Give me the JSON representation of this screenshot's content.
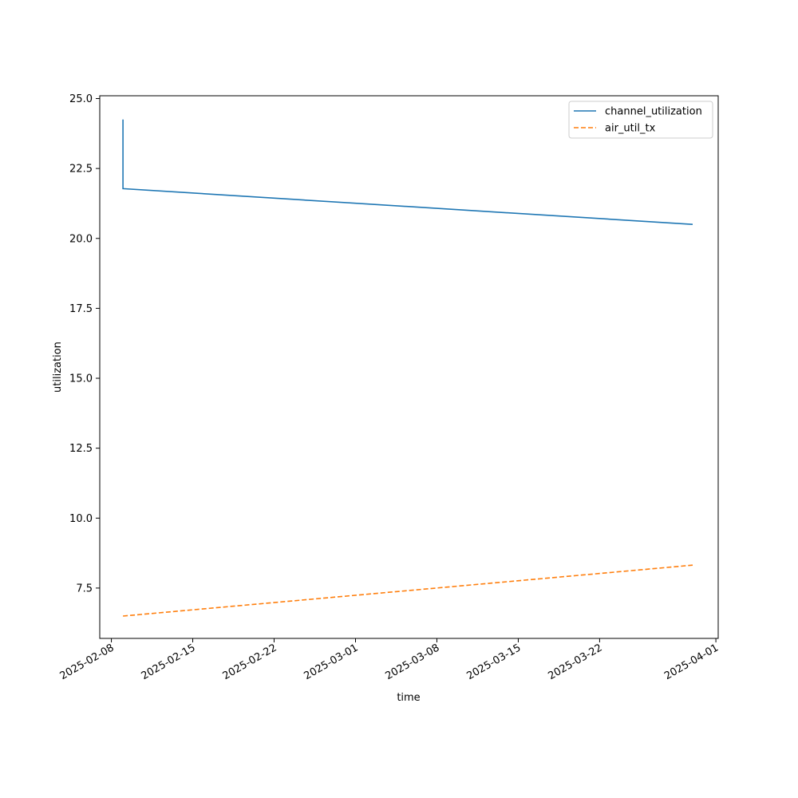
{
  "chart_data": {
    "type": "line",
    "title": "",
    "xlabel": "time",
    "ylabel": "utilization",
    "x_type": "date",
    "xlim": [
      "2025-02-07",
      "2025-03-31"
    ],
    "ylim": [
      5.7,
      25.1
    ],
    "x_ticks": [
      "2025-02-08",
      "2025-02-15",
      "2025-02-22",
      "2025-03-01",
      "2025-03-08",
      "2025-03-15",
      "2025-03-22",
      "2025-04-01"
    ],
    "y_ticks": [
      "7.5",
      "10.0",
      "12.5",
      "15.0",
      "17.5",
      "20.0",
      "22.5",
      "25.0"
    ],
    "grid": false,
    "legend_position": "top-right",
    "series": [
      {
        "name": "channel_utilization",
        "color": "#1f77b4",
        "style": "solid",
        "points": [
          {
            "x": "2025-02-09",
            "y": 24.25
          },
          {
            "x": "2025-02-09",
            "y": 21.78
          },
          {
            "x": "2025-03-30",
            "y": 20.5
          }
        ]
      },
      {
        "name": "air_util_tx",
        "color": "#ff7f0e",
        "style": "dashed",
        "points": [
          {
            "x": "2025-02-09",
            "y": 6.5
          },
          {
            "x": "2025-03-30",
            "y": 8.32
          }
        ]
      }
    ]
  }
}
